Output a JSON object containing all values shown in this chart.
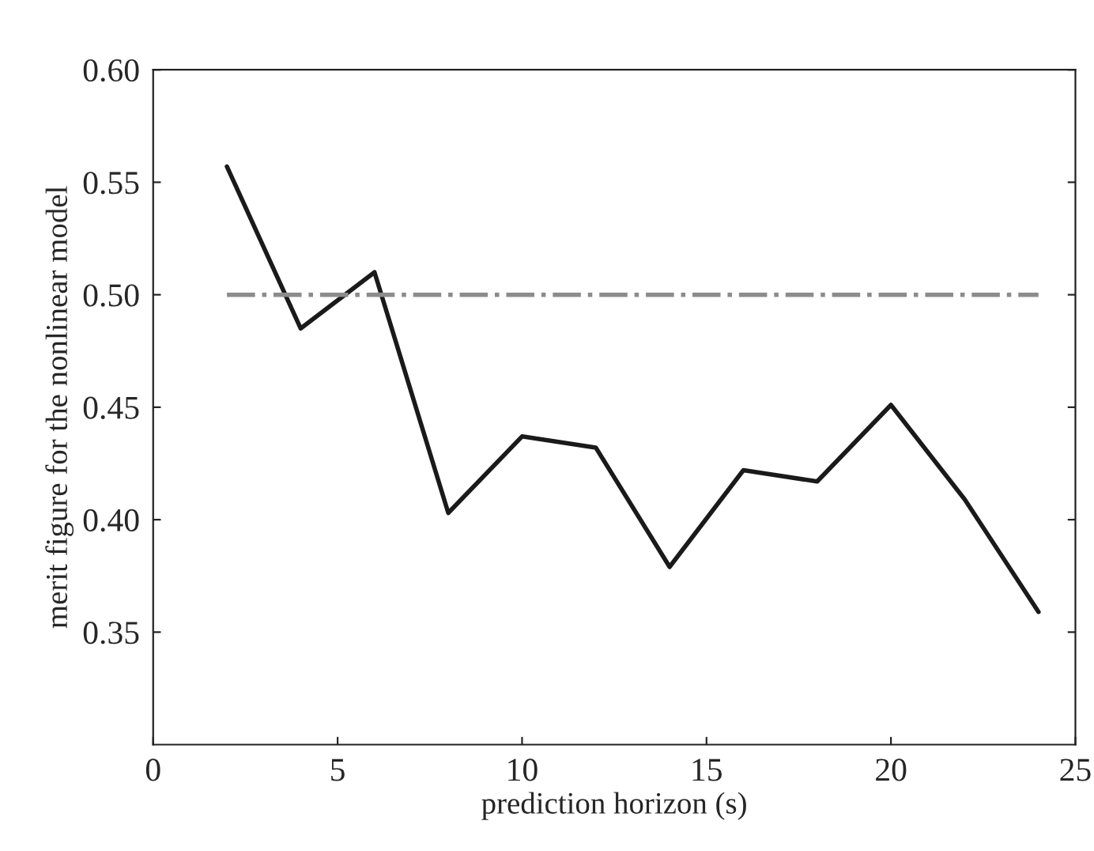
{
  "chart_data": {
    "type": "line",
    "xlabel": "prediction horizon (s)",
    "ylabel": "merit figure for the nonlinear model",
    "xlim": [
      0,
      25
    ],
    "xticks": [
      0,
      5,
      10,
      15,
      20,
      25
    ],
    "ylim": [
      0.3,
      0.6
    ],
    "yticks": [
      {
        "value": 0.35,
        "label": "0.35"
      },
      {
        "value": 0.4,
        "label": "0.40"
      },
      {
        "value": 0.45,
        "label": "0.45"
      },
      {
        "value": 0.5,
        "label": "0.50"
      },
      {
        "value": 0.55,
        "label": "0.55"
      },
      {
        "value": 0.6,
        "label": "0.60"
      }
    ],
    "grid": false,
    "legend": false,
    "marker": "none",
    "series": [
      {
        "color": "#1a1a1a",
        "line_style": "solid",
        "x": [
          2,
          4,
          6,
          8,
          10,
          12,
          14,
          16,
          18,
          20,
          22,
          24
        ],
        "values": [
          0.557,
          0.485,
          0.51,
          0.403,
          0.437,
          0.432,
          0.379,
          0.422,
          0.417,
          0.451,
          0.409,
          0.359
        ]
      },
      {
        "color": "#8c8c8c",
        "line_style": "dashdot",
        "x": [
          2,
          24
        ],
        "values": [
          0.5,
          0.5
        ]
      }
    ]
  }
}
